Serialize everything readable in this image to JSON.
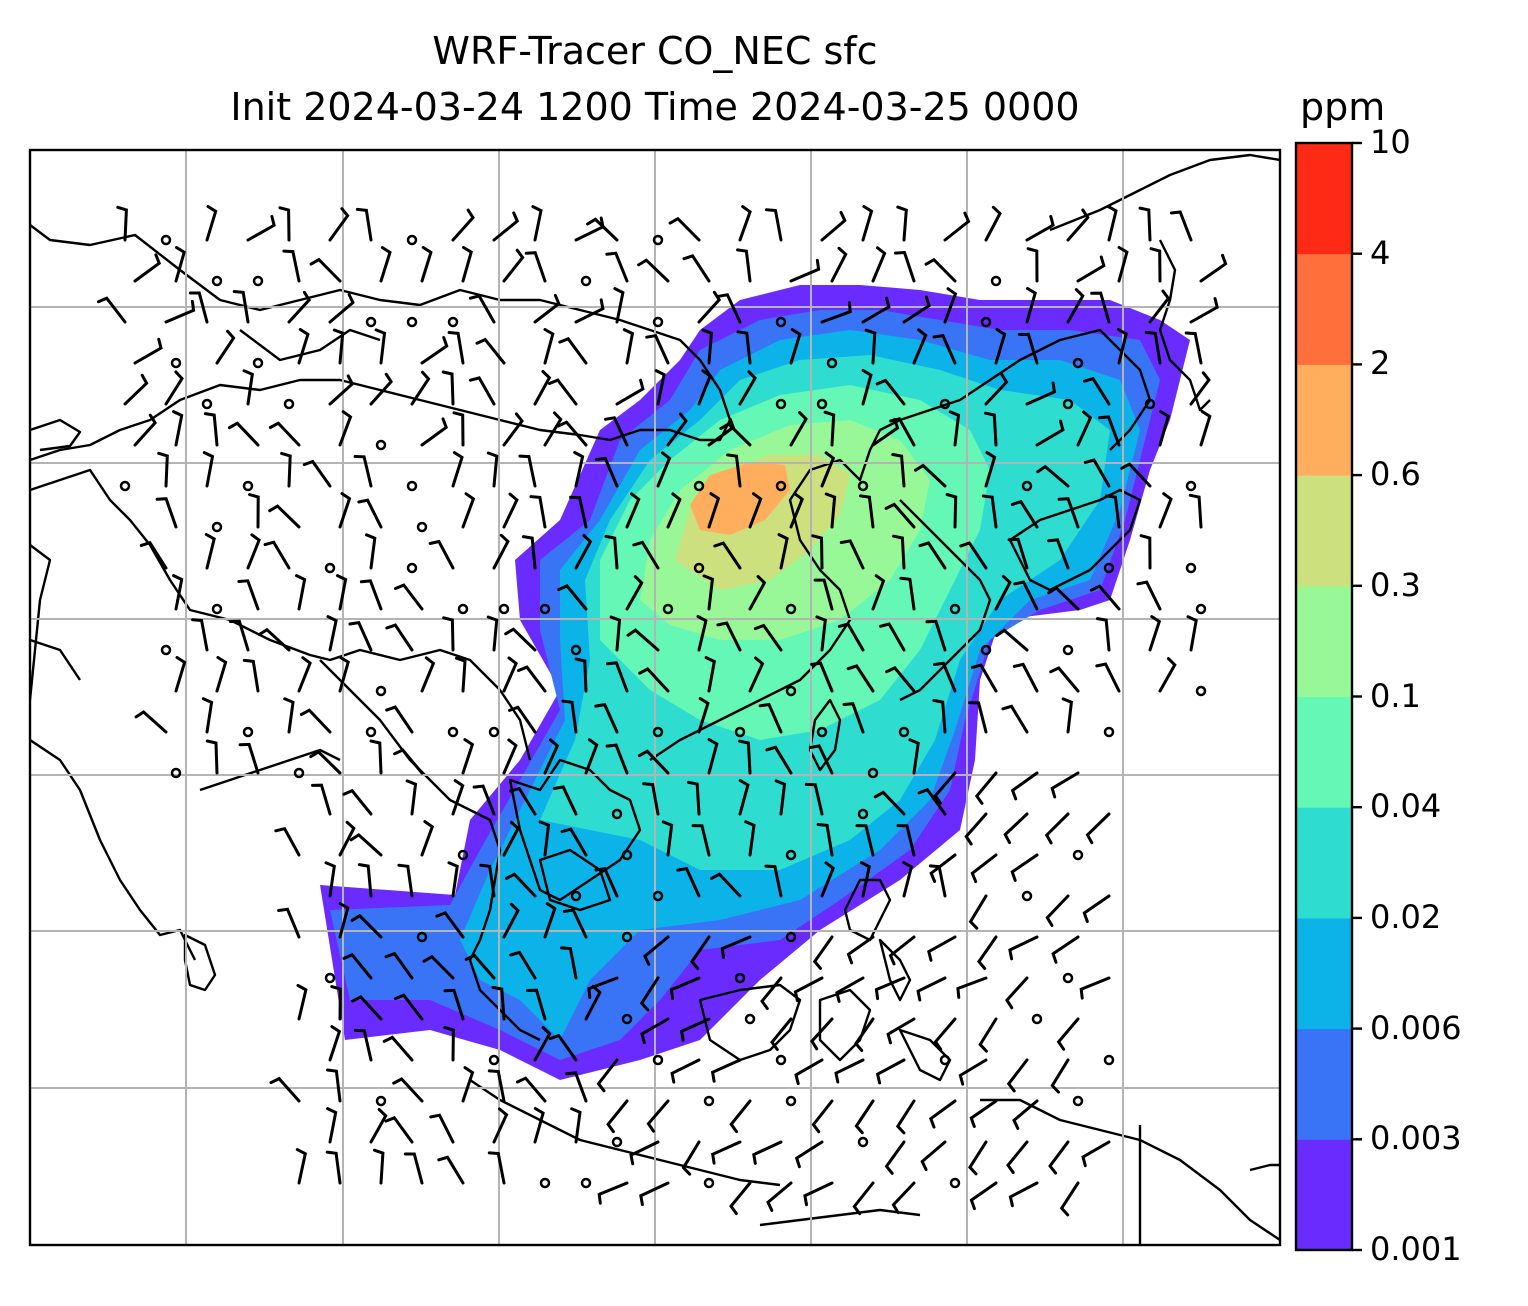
{
  "title": {
    "line1": "WRF-Tracer CO_NEC sfc",
    "line2": "Init 2024-03-24 1200 Time 2024-03-25 0000"
  },
  "colorbar": {
    "unit": "ppm",
    "levels": [
      "0.001",
      "0.003",
      "0.006",
      "0.02",
      "0.04",
      "0.1",
      "0.3",
      "0.6",
      "2",
      "4",
      "10"
    ],
    "colors": [
      "#6a2bff",
      "#3a74f6",
      "#0cb3e8",
      "#2fdcd0",
      "#64f7b6",
      "#98f898",
      "#cde07e",
      "#ffae5e",
      "#ff6f3c",
      "#ff2a16"
    ]
  },
  "map": {
    "field": "CO_NEC surface tracer concentration",
    "overlay": "wind barbs",
    "gridlines": true
  }
}
